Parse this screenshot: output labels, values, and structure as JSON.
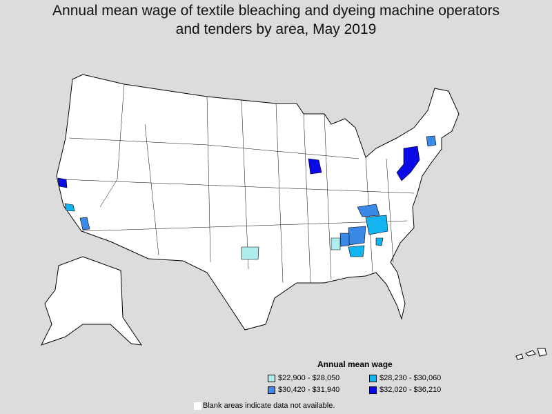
{
  "title": "Annual mean wage of textile bleaching and dyeing machine operators and tenders by area, May 2019",
  "legend": {
    "title": "Annual mean wage",
    "items": [
      {
        "label": "$22,900 - $28,050",
        "color": "#aeeeee"
      },
      {
        "label": "$28,230 - $30,060",
        "color": "#14b4f0"
      },
      {
        "label": "$30,420 - $31,940",
        "color": "#3a88e8"
      },
      {
        "label": "$32,020 - $36,210",
        "color": "#0a0ae6"
      }
    ]
  },
  "note": "Blank areas indicate data not available."
}
